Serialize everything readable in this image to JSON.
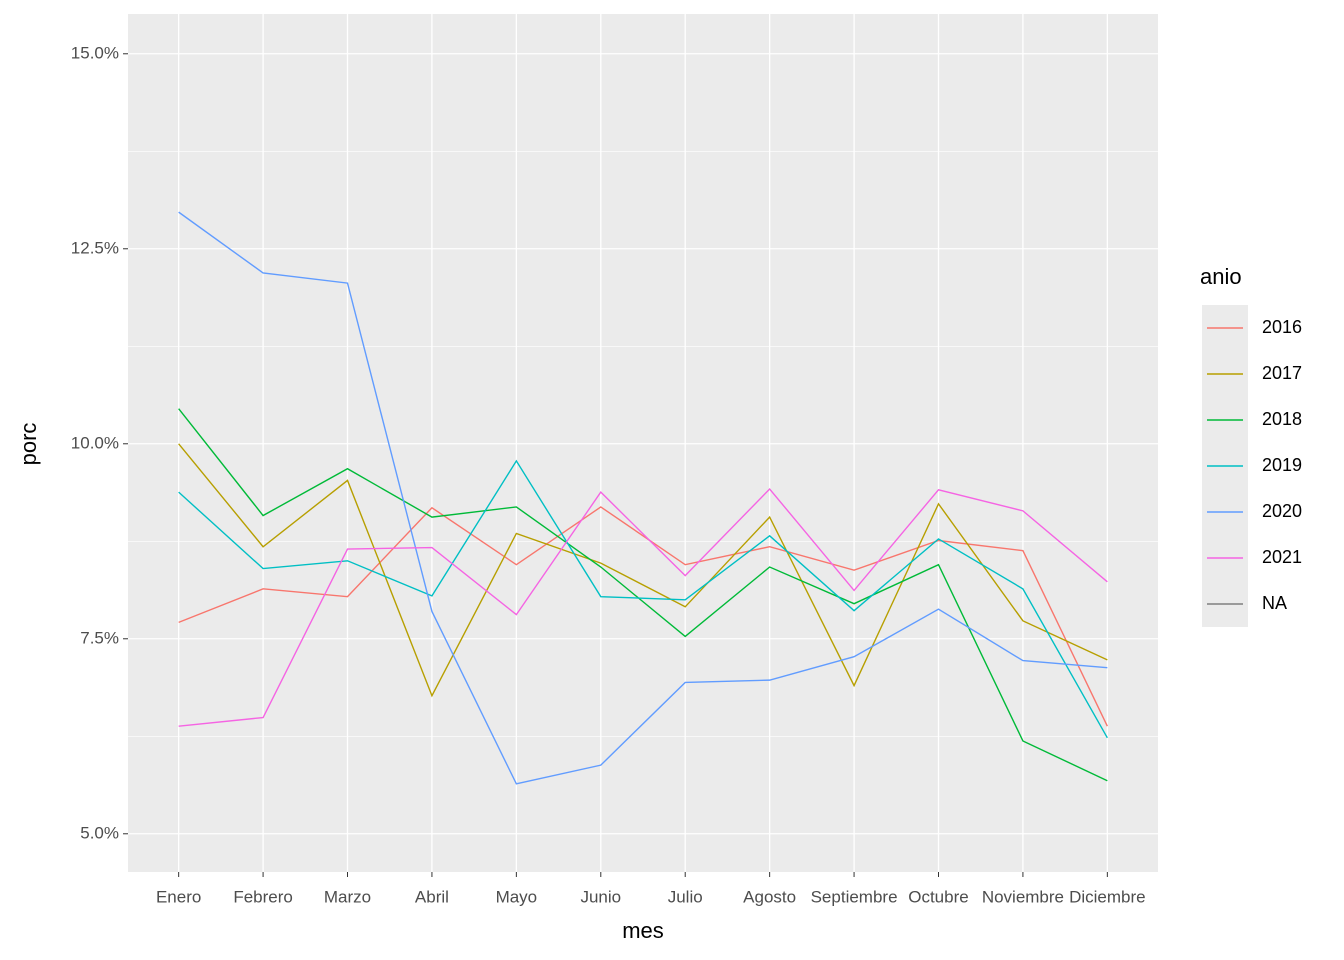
{
  "chart_data": {
    "type": "line",
    "x_label": "mes",
    "y_label": "porc",
    "legend_title": "anio",
    "categories": [
      "Enero",
      "Febrero",
      "Marzo",
      "Abril",
      "Mayo",
      "Junio",
      "Julio",
      "Agosto",
      "Septiembre",
      "Octubre",
      "Noviembre",
      "Diciembre"
    ],
    "series": [
      {
        "name": "2016",
        "color": "#f8766d",
        "values": [
          7.71,
          8.14,
          8.04,
          9.18,
          8.45,
          9.19,
          8.45,
          8.68,
          8.38,
          8.76,
          8.63,
          6.38
        ]
      },
      {
        "name": "2017",
        "color": "#b79f00",
        "values": [
          10.0,
          8.68,
          9.53,
          6.77,
          8.85,
          8.47,
          7.91,
          9.06,
          6.9,
          9.23,
          7.73,
          7.23
        ]
      },
      {
        "name": "2018",
        "color": "#00ba38",
        "values": [
          10.45,
          9.08,
          9.68,
          9.06,
          9.19,
          8.42,
          7.53,
          8.42,
          7.95,
          8.45,
          6.19,
          5.68
        ]
      },
      {
        "name": "2019",
        "color": "#00bfc4",
        "values": [
          9.38,
          8.4,
          8.5,
          8.05,
          9.78,
          8.04,
          8.0,
          8.82,
          7.86,
          8.78,
          8.14,
          6.23
        ]
      },
      {
        "name": "2020",
        "color": "#619cff",
        "values": [
          12.97,
          12.19,
          12.06,
          7.85,
          5.64,
          5.88,
          6.94,
          6.97,
          7.27,
          7.88,
          7.22,
          7.13
        ]
      },
      {
        "name": "2021",
        "color": "#f564e3",
        "values": [
          6.38,
          6.49,
          8.65,
          8.67,
          7.81,
          9.38,
          8.31,
          9.42,
          8.12,
          9.41,
          9.14,
          8.23
        ]
      },
      {
        "name": "NA",
        "color": "#7f7f7f",
        "values": [
          null,
          null,
          null,
          null,
          null,
          null,
          null,
          null,
          null,
          null,
          null,
          null
        ]
      }
    ],
    "ylim": [
      4.51,
      15.51
    ],
    "yticks": [
      {
        "value": 5,
        "label": "5.0%"
      },
      {
        "value": 7.5,
        "label": "7.5%"
      },
      {
        "value": 10,
        "label": "10.0%"
      },
      {
        "value": 12.5,
        "label": "12.5%"
      },
      {
        "value": 15,
        "label": "15.0%"
      }
    ],
    "yminor_ticks": [
      6.25,
      8.75,
      11.25,
      13.75
    ],
    "grid": true,
    "legend_position": "right"
  }
}
